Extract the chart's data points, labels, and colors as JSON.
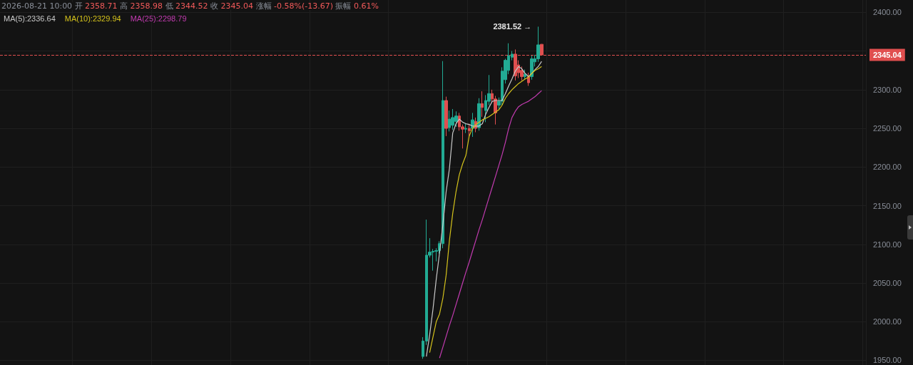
{
  "chart_data": {
    "type": "candlestick",
    "annotations": [
      "2026-08-21 10:00 开 2358.71 高 2358.98 低 2344.52 收 2345.04 涨幅 -0.58%(-13.67) 振幅 0.61%",
      "2381.52 →"
    ],
    "categories": [
      null,
      null,
      null,
      null,
      null,
      null,
      null,
      null,
      null,
      null,
      null,
      null,
      null,
      null,
      null,
      null,
      null,
      null,
      null,
      null,
      null,
      null,
      null,
      null,
      null,
      null,
      null,
      null,
      null,
      null,
      null,
      null,
      null,
      null,
      null,
      null,
      null,
      null,
      null,
      null,
      null,
      null,
      null,
      null,
      null,
      null,
      null,
      null,
      null,
      null,
      null,
      null,
      null,
      null,
      null,
      null,
      null,
      null,
      null,
      null,
      null,
      null,
      null,
      null,
      null,
      null,
      null,
      null,
      null,
      null,
      null,
      null,
      null,
      null,
      null,
      null,
      null,
      null,
      null,
      null,
      null,
      null,
      null,
      null,
      null,
      null,
      null,
      null,
      null,
      null,
      null,
      null,
      null,
      null,
      null,
      null,
      null,
      null,
      null,
      null,
      null,
      null,
      null,
      null,
      null,
      null,
      null,
      null,
      null,
      null,
      null,
      null,
      null,
      null,
      null,
      null,
      null,
      null,
      null,
      null,
      null,
      null,
      null,
      null,
      null,
      null,
      null,
      null,
      null,
      null,
      null,
      null,
      null,
      null,
      null,
      null,
      null,
      null,
      null,
      null,
      null,
      null,
      null,
      null,
      null,
      null,
      null,
      null,
      null,
      null,
      null,
      null,
      null,
      null,
      null,
      null,
      null,
      null,
      null,
      null,
      null,
      null,
      null,
      null,
      null,
      null,
      null,
      null,
      null,
      null,
      null,
      null,
      null,
      null,
      null,
      null,
      null,
      null,
      null,
      null,
      null,
      null,
      null,
      null,
      null,
      null,
      null,
      null,
      null,
      null,
      null,
      null,
      null,
      null,
      null,
      null,
      null,
      null,
      null,
      null,
      null,
      null,
      null,
      null,
      null,
      null,
      null,
      null,
      null,
      null,
      null,
      null,
      null,
      null,
      null,
      null,
      null,
      null,
      null,
      null,
      null,
      null,
      null,
      null,
      null,
      null,
      null,
      null,
      null,
      null,
      null,
      null,
      null,
      null,
      null,
      null,
      null,
      null,
      null,
      null,
      null,
      null,
      null,
      null,
      null,
      null,
      null,
      null,
      null,
      null,
      null,
      null,
      null,
      null,
      null,
      null,
      null,
      null,
      null,
      null,
      null,
      null,
      null
    ],
    "ohlc": [
      null,
      null,
      null,
      null,
      null,
      null,
      null,
      null,
      null,
      null,
      null,
      null,
      null,
      null,
      null,
      null,
      null,
      null,
      null,
      null,
      null,
      null,
      null,
      null,
      null,
      null,
      null,
      null,
      null,
      null,
      null,
      null,
      null,
      null,
      null,
      null,
      null,
      null,
      null,
      null,
      null,
      null,
      null,
      null,
      null,
      null,
      null,
      null,
      null,
      null,
      null,
      null,
      null,
      null,
      null,
      null,
      null,
      null,
      null,
      null,
      null,
      null,
      null,
      null,
      null,
      null,
      null,
      null,
      null,
      null,
      null,
      null,
      null,
      null,
      null,
      null,
      null,
      null,
      null,
      null,
      null,
      null,
      null,
      null,
      null,
      null,
      null,
      null,
      null,
      null,
      null,
      null,
      null,
      null,
      null,
      null,
      null,
      null,
      null,
      null,
      null,
      null,
      null,
      null,
      null,
      null,
      null,
      null,
      null,
      null,
      null,
      null,
      null,
      null,
      null,
      null,
      null,
      null,
      null,
      null,
      null,
      null,
      null,
      null,
      null,
      null,
      null,
      null,
      [
        1955,
        1980,
        1952,
        1975
      ],
      [
        1975,
        2132,
        1970,
        2086
      ],
      [
        2086,
        2108,
        2083,
        2090
      ],
      [
        2090,
        2094,
        2066,
        2091
      ],
      [
        2091,
        2095,
        2078,
        2092
      ],
      [
        2092,
        2104,
        2088,
        2101
      ],
      [
        2101,
        2337,
        2095,
        2286
      ],
      [
        2286,
        2291,
        2240,
        2250
      ],
      [
        2251,
        2273,
        2246,
        2262
      ],
      [
        2254,
        2275,
        2248,
        2264
      ],
      [
        2259,
        2272,
        2252,
        2266
      ],
      [
        2266,
        2270,
        2247,
        2252
      ],
      [
        2252,
        2255,
        2224,
        2249
      ],
      [
        2249,
        2256,
        2244,
        2250
      ],
      [
        2250,
        2256,
        2238,
        2247
      ],
      [
        2250,
        2270,
        2239,
        2261
      ],
      [
        2259,
        2264,
        2245,
        2250
      ],
      [
        2251,
        2289,
        2247,
        2282
      ],
      [
        2282,
        2298,
        2265,
        2277
      ],
      [
        2273,
        2293,
        2258,
        2286
      ],
      [
        2285,
        2319,
        2280,
        2295
      ],
      [
        2295,
        2300,
        2283,
        2288
      ],
      [
        2288,
        2292,
        2255,
        2270
      ],
      [
        2280,
        2290,
        2275,
        2285
      ],
      [
        2285,
        2329,
        2280,
        2324
      ],
      [
        2313,
        2340,
        2308,
        2338
      ],
      [
        2325,
        2360,
        2320,
        2344
      ],
      [
        2342,
        2350,
        2338,
        2346
      ],
      [
        2346,
        2352,
        2312,
        2318
      ],
      [
        2332,
        2338,
        2315,
        2322
      ],
      [
        2325,
        2330,
        2312,
        2317
      ],
      [
        2317,
        2326,
        2314,
        2320
      ],
      [
        2317,
        2322,
        2305,
        2309
      ],
      [
        2317,
        2344,
        2313,
        2340
      ],
      [
        2336,
        2345,
        2330,
        2340
      ],
      [
        2340,
        2381.52,
        2336,
        2358
      ],
      [
        2358.71,
        2358.98,
        2344.52,
        2345.04
      ],
      null,
      null,
      null,
      null,
      null,
      null,
      null,
      null,
      null,
      null,
      null,
      null,
      null,
      null,
      null,
      null,
      null,
      null,
      null,
      null,
      null,
      null,
      null,
      null,
      null,
      null,
      null,
      null,
      null,
      null,
      null,
      null,
      null,
      null,
      null,
      null,
      null,
      null,
      null,
      null,
      null,
      null,
      null,
      null,
      null,
      null,
      null,
      null,
      null,
      null,
      null,
      null,
      null,
      null,
      null,
      null,
      null,
      null,
      null,
      null,
      null,
      null,
      null,
      null,
      null,
      null,
      null,
      null,
      null,
      null,
      null,
      null,
      null,
      null,
      null,
      null,
      null,
      null,
      null,
      null,
      null,
      null,
      null,
      null,
      null,
      null,
      null,
      null,
      null,
      null,
      null,
      null,
      null,
      null,
      null,
      null,
      null,
      null
    ],
    "series": [
      {
        "name": "MA(5):2336.64",
        "type": "line",
        "color": "#c8c8c8",
        "values": [
          null,
          null,
          null,
          null,
          null,
          null,
          null,
          null,
          null,
          null,
          null,
          null,
          null,
          null,
          null,
          null,
          null,
          null,
          null,
          null,
          null,
          null,
          null,
          null,
          null,
          null,
          null,
          null,
          null,
          null,
          null,
          null,
          null,
          null,
          null,
          null,
          null,
          null,
          null,
          null,
          null,
          null,
          null,
          null,
          null,
          null,
          null,
          null,
          null,
          null,
          null,
          null,
          null,
          null,
          null,
          null,
          null,
          null,
          null,
          null,
          null,
          null,
          null,
          null,
          null,
          null,
          null,
          null,
          null,
          null,
          null,
          null,
          null,
          null,
          null,
          null,
          null,
          null,
          null,
          null,
          null,
          null,
          null,
          null,
          null,
          null,
          null,
          null,
          null,
          null,
          null,
          null,
          null,
          null,
          null,
          null,
          null,
          null,
          null,
          null,
          null,
          null,
          null,
          null,
          null,
          null,
          null,
          null,
          null,
          null,
          null,
          null,
          null,
          null,
          null,
          null,
          null,
          null,
          null,
          null,
          null,
          null,
          null,
          null,
          null,
          null,
          null,
          null,
          null,
          1955,
          1983,
          2016,
          2055,
          2089,
          2125,
          2168,
          2198,
          2244,
          2256,
          2262,
          2258,
          2256,
          2255,
          2253,
          2253,
          2253,
          2256,
          2268,
          2277,
          2285,
          2286,
          2286,
          2286,
          2295,
          2305,
          2314,
          2324,
          2330,
          2327,
          2321,
          2317,
          2321,
          2326,
          2330,
          2336.64,
          null,
          null,
          null,
          null,
          null,
          null,
          null,
          null,
          null,
          null,
          null,
          null,
          null,
          null,
          null,
          null,
          null,
          null,
          null,
          null,
          null,
          null,
          null,
          null,
          null,
          null,
          null,
          null,
          null,
          null,
          null,
          null,
          null,
          null,
          null,
          null,
          null,
          null,
          null,
          null,
          null,
          null,
          null,
          null,
          null,
          null,
          null,
          null,
          null,
          null,
          null,
          null,
          null,
          null,
          null,
          null,
          null,
          null,
          null,
          null,
          null,
          null,
          null,
          null,
          null,
          null,
          null,
          null,
          null,
          null,
          null,
          null,
          null,
          null,
          null,
          null,
          null,
          null,
          null,
          null,
          null,
          null,
          null,
          null,
          null,
          null,
          null,
          null,
          null,
          null,
          null,
          null,
          null,
          null,
          null,
          null,
          null,
          null
        ]
      },
      {
        "name": "MA(10):2329.94",
        "type": "line",
        "color": "#d4c21c",
        "values": [
          null,
          null,
          null,
          null,
          null,
          null,
          null,
          null,
          null,
          null,
          null,
          null,
          null,
          null,
          null,
          null,
          null,
          null,
          null,
          null,
          null,
          null,
          null,
          null,
          null,
          null,
          null,
          null,
          null,
          null,
          null,
          null,
          null,
          null,
          null,
          null,
          null,
          null,
          null,
          null,
          null,
          null,
          null,
          null,
          null,
          null,
          null,
          null,
          null,
          null,
          null,
          null,
          null,
          null,
          null,
          null,
          null,
          null,
          null,
          null,
          null,
          null,
          null,
          null,
          null,
          null,
          null,
          null,
          null,
          null,
          null,
          null,
          null,
          null,
          null,
          null,
          null,
          null,
          null,
          null,
          null,
          null,
          null,
          null,
          null,
          null,
          null,
          null,
          null,
          null,
          null,
          null,
          null,
          null,
          null,
          null,
          null,
          null,
          null,
          null,
          null,
          null,
          null,
          null,
          null,
          null,
          null,
          null,
          null,
          null,
          null,
          null,
          null,
          null,
          null,
          null,
          null,
          null,
          null,
          null,
          null,
          null,
          null,
          null,
          null,
          null,
          null,
          null,
          null,
          null,
          1960,
          1980,
          2000,
          2010,
          2030,
          2060,
          2105,
          2140,
          2168,
          2190,
          2204,
          2215,
          2240,
          2250,
          2255,
          2258,
          2261,
          2263,
          2265,
          2268,
          2271,
          2274,
          2280,
          2289,
          2295,
          2300,
          2304,
          2308,
          2311,
          2314,
          2316,
          2321,
          2325,
          2327,
          2329.94,
          null,
          null,
          null,
          null,
          null,
          null,
          null,
          null,
          null,
          null,
          null,
          null,
          null,
          null,
          null,
          null,
          null,
          null,
          null,
          null,
          null,
          null,
          null,
          null,
          null,
          null,
          null,
          null,
          null,
          null,
          null,
          null,
          null,
          null,
          null,
          null,
          null,
          null,
          null,
          null,
          null,
          null,
          null,
          null,
          null,
          null,
          null,
          null,
          null,
          null,
          null,
          null,
          null,
          null,
          null,
          null,
          null,
          null,
          null,
          null,
          null,
          null,
          null,
          null,
          null,
          null,
          null,
          null,
          null,
          null,
          null,
          null,
          null,
          null,
          null,
          null,
          null,
          null,
          null,
          null,
          null,
          null,
          null,
          null,
          null,
          null,
          null,
          null,
          null,
          null,
          null,
          null,
          null,
          null,
          null,
          null,
          null,
          null
        ]
      },
      {
        "name": "MA(25):2298.79",
        "type": "line",
        "color": "#c23bb0",
        "values": [
          null,
          null,
          null,
          null,
          null,
          null,
          null,
          null,
          null,
          null,
          null,
          null,
          null,
          null,
          null,
          null,
          null,
          null,
          null,
          null,
          null,
          null,
          null,
          null,
          null,
          null,
          null,
          null,
          null,
          null,
          null,
          null,
          null,
          null,
          null,
          null,
          null,
          null,
          null,
          null,
          null,
          null,
          null,
          null,
          null,
          null,
          null,
          null,
          null,
          null,
          null,
          null,
          null,
          null,
          null,
          null,
          null,
          null,
          null,
          null,
          null,
          null,
          null,
          null,
          null,
          null,
          null,
          null,
          null,
          null,
          null,
          null,
          null,
          null,
          null,
          null,
          null,
          null,
          null,
          null,
          null,
          null,
          null,
          null,
          null,
          null,
          null,
          null,
          null,
          null,
          null,
          null,
          null,
          null,
          null,
          null,
          null,
          null,
          null,
          null,
          null,
          null,
          null,
          null,
          null,
          null,
          null,
          null,
          null,
          null,
          null,
          null,
          null,
          null,
          null,
          null,
          null,
          null,
          null,
          null,
          null,
          null,
          null,
          null,
          null,
          null,
          null,
          null,
          null,
          null,
          null,
          null,
          null,
          1953,
          1967,
          1981,
          1995,
          2008,
          2022,
          2036,
          2050,
          2064,
          2077,
          2091,
          2105,
          2119,
          2132,
          2146,
          2160,
          2174,
          2188,
          2202,
          2216,
          2232,
          2250,
          2264,
          2272,
          2278,
          2281,
          2283,
          2285,
          2288,
          2291,
          2295,
          2298.79,
          null,
          null,
          null,
          null,
          null,
          null,
          null,
          null,
          null,
          null,
          null,
          null,
          null,
          null,
          null,
          null,
          null,
          null,
          null,
          null,
          null,
          null,
          null,
          null,
          null,
          null,
          null,
          null,
          null,
          null,
          null,
          null,
          null,
          null,
          null,
          null,
          null,
          null,
          null,
          null,
          null,
          null,
          null,
          null,
          null,
          null,
          null,
          null,
          null,
          null,
          null,
          null,
          null,
          null,
          null,
          null,
          null,
          null,
          null,
          null,
          null,
          null,
          null,
          null,
          null,
          null,
          null,
          null,
          null,
          null,
          null,
          null,
          null,
          null,
          null,
          null,
          null,
          null,
          null,
          null,
          null,
          null,
          null,
          null,
          null,
          null,
          null,
          null,
          null,
          null,
          null,
          null,
          null,
          null,
          null,
          null,
          null,
          null
        ]
      }
    ],
    "ylim": [
      1944,
      2416
    ],
    "yticks": [
      {
        "value": 1950,
        "label": "1950.00"
      },
      {
        "value": 2000,
        "label": "2000.00"
      },
      {
        "value": 2050,
        "label": "2050.00"
      },
      {
        "value": 2100,
        "label": "2100.00"
      },
      {
        "value": 2150,
        "label": "2150.00"
      },
      {
        "value": 2200,
        "label": "2200.00"
      },
      {
        "value": 2250,
        "label": "2250.00"
      },
      {
        "value": 2300,
        "label": "2300.00"
      },
      {
        "value": 2350,
        "label": null
      },
      {
        "value": 2400,
        "label": "2400.00"
      }
    ],
    "ref_lines": [
      {
        "axis": "y",
        "value": 2345.04,
        "label": "2345.04",
        "color": "#e04f4f",
        "line_style": "dashed"
      }
    ],
    "tick_labels": "y",
    "grid": true,
    "legend": "top left"
  }
}
